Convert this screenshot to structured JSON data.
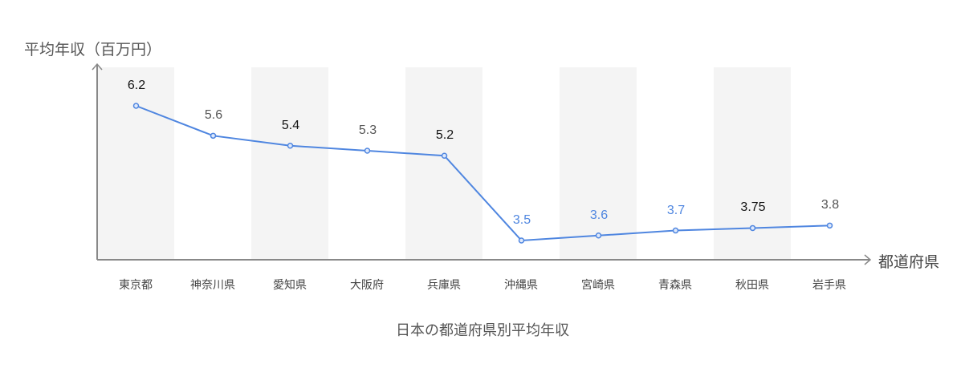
{
  "chart_data": {
    "type": "line",
    "title": "日本の都道府県別平均年収",
    "xlabel": "都道府県",
    "ylabel": "平均年収（百万円）",
    "categories": [
      "東京都",
      "神奈川県",
      "愛知県",
      "大阪府",
      "兵庫県",
      "沖縄県",
      "宮崎県",
      "青森県",
      "秋田県",
      "岩手県"
    ],
    "series": [
      {
        "name": "平均年収",
        "values": [
          6.2,
          5.6,
          5.4,
          5.3,
          5.2,
          3.5,
          3.6,
          3.7,
          3.75,
          3.8
        ],
        "color": "#4f86e0"
      }
    ],
    "data_labels": [
      "6.2",
      "5.6",
      "5.4",
      "5.3",
      "5.2",
      "3.5",
      "3.6",
      "3.7",
      "3.75",
      "3.8"
    ],
    "label_colors": [
      "#111111",
      "#555555",
      "#111111",
      "#555555",
      "#111111",
      "#4f86e0",
      "#4f86e0",
      "#4f86e0",
      "#111111",
      "#555555"
    ],
    "grid": false,
    "alternating_bands": true,
    "band_color": "#f4f4f4",
    "legend": "none"
  }
}
